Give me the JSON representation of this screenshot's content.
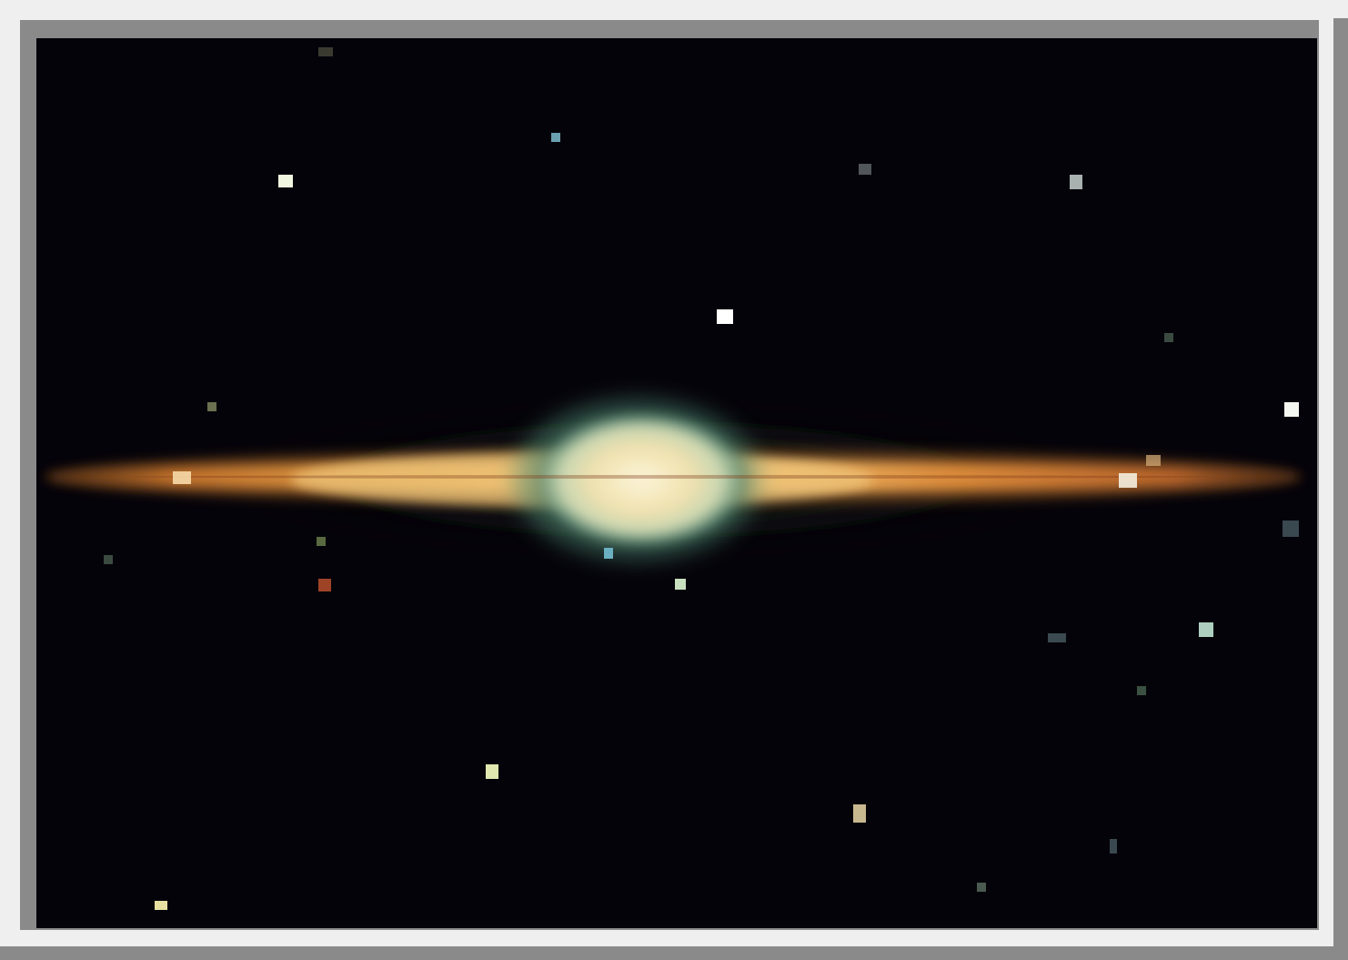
{
  "image": {
    "subject": "galaxy-photo",
    "colors": {
      "background": "#05030a",
      "frame_light": "#efefef",
      "frame_dark": "#8a8a8a",
      "disk": "#d9902e",
      "bulge": "#f4ebc6",
      "bulge_edge": "#9fd0b8"
    }
  }
}
